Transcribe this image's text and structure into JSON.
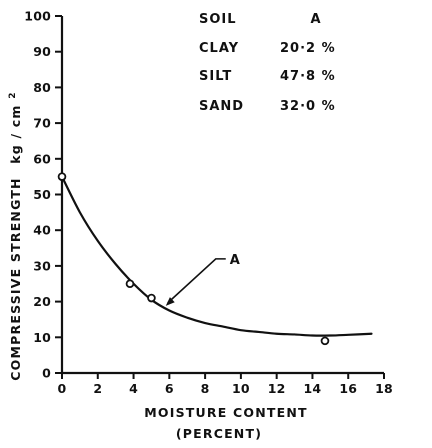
{
  "chart_data": {
    "type": "line",
    "title": "",
    "xlabel": "MOISTURE CONTENT",
    "xlabel_sub": "(PERCENT)",
    "ylabel": "COMPRESSIVE STRENGTH",
    "ylabel_unit": "kg / cm",
    "ylabel_unit_sup": "2",
    "xlim": [
      0,
      18
    ],
    "ylim": [
      0,
      100
    ],
    "xticks": [
      0,
      2,
      4,
      6,
      8,
      10,
      12,
      14,
      16,
      18
    ],
    "yticks": [
      0,
      10,
      20,
      30,
      40,
      50,
      60,
      70,
      80,
      90,
      100
    ],
    "grid": false,
    "series": [
      {
        "name": "A",
        "kind": "points",
        "marker": "open-circle",
        "x": [
          0,
          3.8,
          5.0,
          14.7
        ],
        "y": [
          55,
          25,
          21,
          9
        ]
      },
      {
        "name": "A",
        "kind": "curve",
        "x": [
          0,
          1,
          2,
          3,
          4,
          5,
          6,
          7,
          8,
          9,
          10,
          11,
          12,
          13,
          14,
          15,
          16,
          17.3
        ],
        "y": [
          55,
          45,
          37,
          30.5,
          25,
          20.5,
          17.5,
          15.5,
          14,
          13,
          12,
          11.5,
          11,
          10.8,
          10.5,
          10.5,
          10.7,
          11
        ]
      }
    ],
    "annotations": [
      {
        "text": "A",
        "target_x": 5.8,
        "target_y": 18.8
      }
    ],
    "info_table": {
      "rows": [
        {
          "label": "SOIL",
          "value": "A"
        },
        {
          "label": "CLAY",
          "value": "20·2 %"
        },
        {
          "label": "SILT",
          "value": "47·8 %"
        },
        {
          "label": "SAND",
          "value": "32·0 %"
        }
      ]
    }
  }
}
